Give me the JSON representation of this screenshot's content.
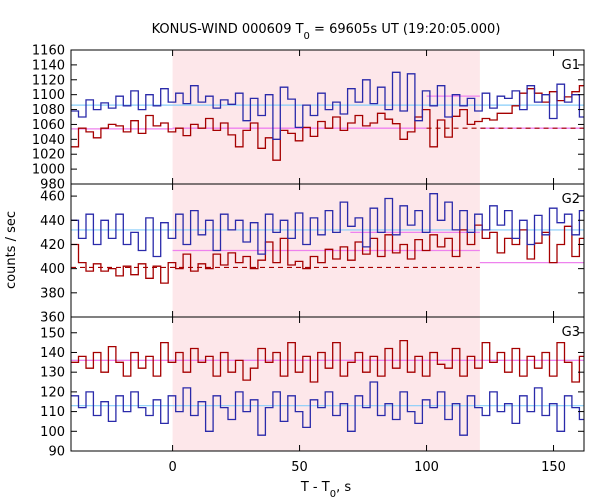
{
  "title": {
    "main": "KONUS-WIND 000609 T",
    "sub": "0",
    "rest": " = 69605s UT (19:20:05.000)"
  },
  "xlabel": {
    "main": "T - T",
    "sub": "0",
    "rest": ", s"
  },
  "ylabel": "counts / sec",
  "colors": {
    "red": "#a50000",
    "blue": "#2a2aaa",
    "pink": "#ee82ee",
    "cyan": "#87cefa",
    "shade": "#fde7ea"
  },
  "chart_data": {
    "type": "line",
    "xlim": [
      -40,
      162
    ],
    "x_ticks": [
      0,
      50,
      100,
      150
    ],
    "highlight_interval": [
      0,
      121
    ],
    "bin_width": 2.944,
    "panels": [
      {
        "label": "G1",
        "ylim": [
          980,
          1160
        ],
        "y_ticks": [
          980,
          1000,
          1020,
          1040,
          1060,
          1080,
          1100,
          1120,
          1140,
          1160
        ],
        "background_level": 1086,
        "dashed_level": 1055,
        "dashed_range": [
          100,
          162
        ],
        "pink_segments": [
          {
            "x": [
              -40,
              0
            ],
            "y": 1054
          },
          {
            "x": [
              0,
              100
            ],
            "y": 1055
          },
          {
            "x": [
              100,
              121
            ],
            "y": 1098
          },
          {
            "x": [
              121,
              162
            ],
            "y": 1055
          }
        ],
        "series": [
          {
            "color": "red",
            "values": [
              1030,
              1055,
              1050,
              1042,
              1055,
              1060,
              1058,
              1050,
              1065,
              1048,
              1072,
              1058,
              1062,
              1050,
              1055,
              1045,
              1060,
              1055,
              1068,
              1052,
              1062,
              1046,
              1030,
              1052,
              1062,
              1028,
              1042,
              1012,
              1052,
              1048,
              1038,
              1056,
              1044,
              1064,
              1055,
              1070,
              1052,
              1062,
              1072,
              1058,
              1062,
              1075,
              1067,
              1061,
              1040,
              1050,
              1070,
              1080,
              1030,
              1066,
              1043,
              1071,
              1080,
              1060,
              1064,
              1068,
              1066,
              1075,
              1075,
              1085,
              1102,
              1108,
              1102,
              1090,
              1104,
              1092,
              1097,
              1104,
              1112,
              1102,
              1106,
              1085,
              1068,
              1102,
              1100,
              1090,
              1058,
              1062,
              1070,
              1064,
              1060,
              1074,
              1068,
              1068,
              1075,
              1074,
              1075,
              1062
            ]
          },
          {
            "color": "blue",
            "values": [
              1078,
              1070,
              1093,
              1080,
              1089,
              1082,
              1098,
              1085,
              1105,
              1080,
              1100,
              1085,
              1108,
              1090,
              1102,
              1088,
              1112,
              1090,
              1098,
              1082,
              1093,
              1087,
              1102,
              1065,
              1095,
              1072,
              1100,
              1040,
              1110,
              1094,
              1056,
              1086,
              1072,
              1102,
              1080,
              1090,
              1074,
              1108,
              1090,
              1120,
              1088,
              1110,
              1080,
              1130,
              1078,
              1128,
              1065,
              1105,
              1085,
              1112,
              1070,
              1100,
              1085,
              1095,
              1078,
              1102,
              1082,
              1098,
              1095,
              1105,
              1080,
              1112,
              1090,
              1100,
              1068,
              1114,
              1090,
              1100,
              1070,
              1108,
              1082,
              1092,
              1060,
              1102,
              1074,
              1090,
              1064,
              1112,
              1075,
              1090,
              1068,
              1102,
              1075,
              1112,
              1070,
              1135,
              1090,
              1125
            ]
          }
        ]
      },
      {
        "label": "G2",
        "ylim": [
          360,
          470
        ],
        "y_ticks": [
          360,
          380,
          400,
          420,
          440,
          460
        ],
        "background_level": 432,
        "dashed_level": 401,
        "dashed_range": [
          -40,
          121
        ],
        "pink_segments": [
          {
            "x": [
              0,
              121
            ],
            "y": 415
          },
          {
            "x": [
              70,
              121
            ],
            "y": 430
          },
          {
            "x": [
              121,
              162
            ],
            "y": 405
          }
        ],
        "series": [
          {
            "color": "red",
            "values": [
              420,
              405,
              398,
              404,
              398,
              400,
              394,
              402,
              395,
              404,
              392,
              402,
              388,
              405,
              400,
              412,
              398,
              404,
              400,
              412,
              403,
              413,
              405,
              410,
              400,
              407,
              422,
              405,
              425,
              403,
              406,
              400,
              410,
              405,
              416,
              408,
              418,
              407,
              422,
              412,
              425,
              410,
              428,
              413,
              420,
              408,
              424,
              415,
              428,
              418,
              425,
              410,
              432,
              420,
              436,
              425,
              430,
              413,
              425,
              420,
              432,
              408,
              421,
              430,
              405,
              420,
              435,
              410,
              425,
              415,
              430,
              412,
              400,
              413,
              404,
              410,
              395,
              408,
              394,
              406,
              410,
              400,
              415,
              398,
              412,
              406,
              420,
              403
            ]
          },
          {
            "color": "blue",
            "values": [
              440,
              425,
              445,
              420,
              440,
              425,
              445,
              420,
              430,
              415,
              442,
              410,
              438,
              425,
              445,
              420,
              448,
              428,
              440,
              415,
              445,
              432,
              440,
              422,
              438,
              412,
              445,
              430,
              440,
              425,
              446,
              420,
              442,
              428,
              448,
              430,
              455,
              435,
              442,
              418,
              450,
              430,
              458,
              428,
              452,
              436,
              448,
              430,
              462,
              440,
              455,
              432,
              448,
              430,
              445,
              432,
              452,
              436,
              448,
              425,
              440,
              420,
              444,
              428,
              450,
              438,
              445,
              428,
              448,
              420,
              452,
              440,
              428,
              420,
              438,
              425,
              432,
              415,
              440,
              428,
              442,
              420,
              445,
              432,
              450,
              440,
              452,
              438
            ]
          }
        ]
      },
      {
        "label": "G3",
        "ylim": [
          90,
          158
        ],
        "y_ticks": [
          90,
          100,
          110,
          120,
          130,
          140,
          150
        ],
        "background_levels": [
          113,
          136
        ],
        "pink_segments": [
          {
            "x": [
              -40,
              162
            ],
            "y": 136
          }
        ],
        "series": [
          {
            "color": "red",
            "values": [
              135,
              138,
              132,
              140,
              130,
              143,
              135,
              128,
              140,
              132,
              138,
              128,
              145,
              135,
              140,
              130,
              142,
              135,
              138,
              128,
              140,
              130,
              136,
              126,
              132,
              142,
              135,
              140,
              128,
              145,
              130,
              138,
              125,
              140,
              132,
              145,
              128,
              135,
              140,
              130,
              138,
              128,
              142,
              132,
              146,
              130,
              138,
              128,
              140,
              134,
              132,
              142,
              128,
              138,
              132,
              145,
              135,
              140,
              130,
              142,
              128,
              138,
              132,
              140,
              128,
              145,
              135,
              125,
              138,
              132,
              140,
              130,
              136,
              127,
              142,
              135,
              128,
              138,
              130,
              140,
              125,
              135,
              142,
              130,
              138,
              145,
              134,
              140
            ]
          },
          {
            "color": "blue",
            "values": [
              118,
              112,
              120,
              108,
              115,
              105,
              118,
              110,
              120,
              112,
              108,
              116,
              104,
              118,
              110,
              122,
              108,
              115,
              100,
              118,
              112,
              106,
              120,
              110,
              116,
              98,
              112,
              120,
              105,
              118,
              110,
              102,
              116,
              112,
              120,
              108,
              114,
              100,
              118,
              112,
              125,
              108,
              114,
              106,
              120,
              110,
              104,
              116,
              112,
              120,
              106,
              114,
              98,
              118,
              112,
              108,
              120,
              110,
              114,
              104,
              118,
              110,
              122,
              108,
              114,
              100,
              118,
              112,
              106,
              120,
              110,
              116,
              104,
              112,
              120,
              108,
              115,
              102,
              118,
              112,
              110,
              120,
              104,
              116,
              112,
              118,
              108,
              114
            ]
          }
        ]
      }
    ]
  }
}
